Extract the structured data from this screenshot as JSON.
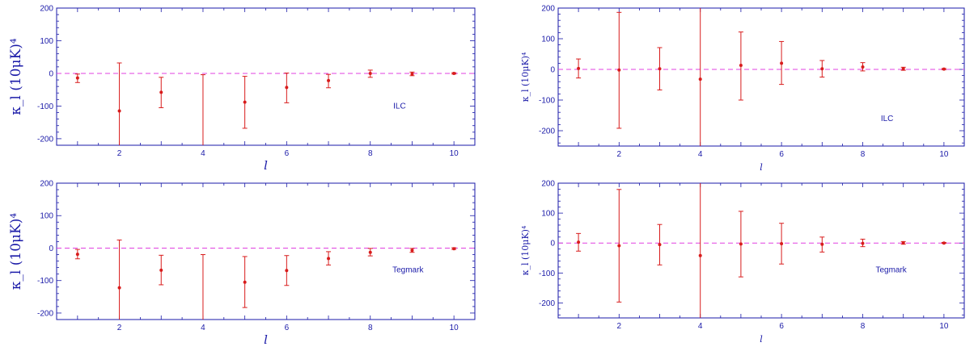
{
  "colors": {
    "axis": "#1a1aa8",
    "data": "#d81c1c",
    "zero_line": "#e040e0"
  },
  "chart_data": [
    {
      "type": "scatter",
      "panel": "top-left",
      "annotation": "ILC",
      "xlabel": "l",
      "ylabel": "κ_l (10μK)⁴",
      "xlim": [
        0.5,
        10.5
      ],
      "ylim": [
        -220,
        200
      ],
      "xticks": [
        2,
        4,
        6,
        8,
        10
      ],
      "yticks": [
        -200,
        -100,
        0,
        100,
        200
      ],
      "points": [
        {
          "x": 1,
          "y": -14,
          "lo": -28,
          "hi": -2
        },
        {
          "x": 2,
          "y": -115,
          "lo": -220,
          "hi": 32
        },
        {
          "x": 3,
          "y": -58,
          "lo": -105,
          "hi": -12
        },
        {
          "x": 4,
          "y": -220,
          "lo": -220,
          "hi": -4
        },
        {
          "x": 5,
          "y": -88,
          "lo": -168,
          "hi": -9
        },
        {
          "x": 6,
          "y": -43,
          "lo": -90,
          "hi": 1
        },
        {
          "x": 7,
          "y": -22,
          "lo": -44,
          "hi": -3
        },
        {
          "x": 8,
          "y": 0,
          "lo": -12,
          "hi": 10
        },
        {
          "x": 9,
          "y": -2,
          "lo": -7,
          "hi": 4
        },
        {
          "x": 10,
          "y": 0,
          "lo": -2,
          "hi": 2
        }
      ]
    },
    {
      "type": "scatter",
      "panel": "top-right",
      "annotation": "ILC",
      "xlabel": "l",
      "ylabel": "κ_l (10μK)⁴",
      "xlim": [
        0.5,
        10.5
      ],
      "ylim": [
        -250,
        200
      ],
      "xticks": [
        2,
        4,
        6,
        8,
        10
      ],
      "yticks": [
        -200,
        -100,
        0,
        100,
        200
      ],
      "points": [
        {
          "x": 1,
          "y": 3,
          "lo": -28,
          "hi": 34
        },
        {
          "x": 2,
          "y": -2,
          "lo": -192,
          "hi": 186
        },
        {
          "x": 3,
          "y": 2,
          "lo": -67,
          "hi": 71
        },
        {
          "x": 4,
          "y": -32,
          "lo": -250,
          "hi": 200
        },
        {
          "x": 5,
          "y": 13,
          "lo": -100,
          "hi": 122
        },
        {
          "x": 6,
          "y": 20,
          "lo": -49,
          "hi": 91
        },
        {
          "x": 7,
          "y": 2,
          "lo": -25,
          "hi": 29
        },
        {
          "x": 8,
          "y": 8,
          "lo": -5,
          "hi": 22
        },
        {
          "x": 9,
          "y": 2,
          "lo": -3,
          "hi": 7
        },
        {
          "x": 10,
          "y": 1,
          "lo": -1,
          "hi": 3
        }
      ]
    },
    {
      "type": "scatter",
      "panel": "bottom-left",
      "annotation": "Tegmark",
      "xlabel": "l",
      "ylabel": "κ_l (10μK)⁴",
      "xlim": [
        0.5,
        10.5
      ],
      "ylim": [
        -220,
        200
      ],
      "xticks": [
        2,
        4,
        6,
        8,
        10
      ],
      "yticks": [
        -200,
        -100,
        0,
        100,
        200
      ],
      "points": [
        {
          "x": 1,
          "y": -19,
          "lo": -33,
          "hi": -4
        },
        {
          "x": 2,
          "y": -122,
          "lo": -220,
          "hi": 25
        },
        {
          "x": 3,
          "y": -68,
          "lo": -113,
          "hi": -22
        },
        {
          "x": 4,
          "y": -220,
          "lo": -220,
          "hi": -20
        },
        {
          "x": 5,
          "y": -105,
          "lo": -183,
          "hi": -26
        },
        {
          "x": 6,
          "y": -69,
          "lo": -115,
          "hi": -23
        },
        {
          "x": 7,
          "y": -32,
          "lo": -52,
          "hi": -11
        },
        {
          "x": 8,
          "y": -13,
          "lo": -24,
          "hi": -1
        },
        {
          "x": 9,
          "y": -7,
          "lo": -13,
          "hi": -1
        },
        {
          "x": 10,
          "y": -2,
          "lo": -4,
          "hi": 1
        }
      ]
    },
    {
      "type": "scatter",
      "panel": "bottom-right",
      "annotation": "Tegmark",
      "xlabel": "l",
      "ylabel": "κ_l (10μK)⁴",
      "xlim": [
        0.5,
        10.5
      ],
      "ylim": [
        -250,
        200
      ],
      "xticks": [
        2,
        4,
        6,
        8,
        10
      ],
      "yticks": [
        -200,
        -100,
        0,
        100,
        200
      ],
      "points": [
        {
          "x": 1,
          "y": 3,
          "lo": -27,
          "hi": 32
        },
        {
          "x": 2,
          "y": -9,
          "lo": -197,
          "hi": 179
        },
        {
          "x": 3,
          "y": -5,
          "lo": -73,
          "hi": 62
        },
        {
          "x": 4,
          "y": -42,
          "lo": -250,
          "hi": 200
        },
        {
          "x": 5,
          "y": -3,
          "lo": -113,
          "hi": 106
        },
        {
          "x": 6,
          "y": -2,
          "lo": -70,
          "hi": 66
        },
        {
          "x": 7,
          "y": -4,
          "lo": -30,
          "hi": 20
        },
        {
          "x": 8,
          "y": -1,
          "lo": -12,
          "hi": 13
        },
        {
          "x": 9,
          "y": 1,
          "lo": -4,
          "hi": 5
        },
        {
          "x": 10,
          "y": 0,
          "lo": -1,
          "hi": 2
        }
      ]
    }
  ]
}
